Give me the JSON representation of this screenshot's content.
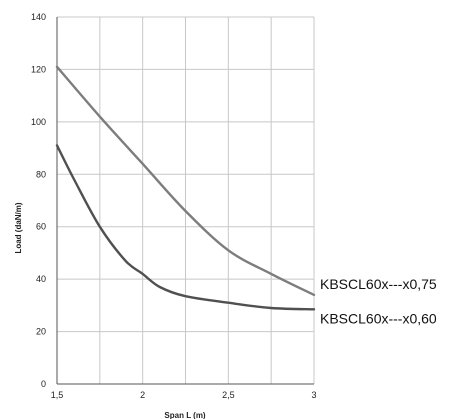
{
  "chart_data": {
    "type": "line",
    "title": "",
    "xlabel": "Span L (m)",
    "ylabel": "Load (daN/m)",
    "xlim": [
      1.5,
      3
    ],
    "ylim": [
      0,
      140
    ],
    "x_ticks": [
      1.5,
      1.75,
      2,
      2.25,
      2.5,
      2.75,
      3
    ],
    "x_tick_labels": [
      "1,5",
      "",
      "2",
      "",
      "2,5",
      "",
      "3"
    ],
    "y_ticks": [
      0,
      20,
      40,
      60,
      80,
      100,
      120,
      140
    ],
    "y_tick_labels": [
      "0",
      "20",
      "40",
      "60",
      "80",
      "100",
      "120",
      "140"
    ],
    "grid": true,
    "legend": "inline-right",
    "series": [
      {
        "name": "KBSCL60x---x0,75",
        "color": "#7d7d7d",
        "x": [
          1.5,
          1.75,
          2.0,
          2.25,
          2.5,
          2.75,
          3.0
        ],
        "y": [
          121,
          102,
          84,
          66,
          51,
          42,
          34
        ]
      },
      {
        "name": "KBSCL60x---x0,60",
        "color": "#505050",
        "x": [
          1.5,
          1.6,
          1.75,
          1.9,
          2.0,
          2.1,
          2.25,
          2.5,
          2.75,
          3.0
        ],
        "y": [
          91,
          78,
          60,
          47,
          42,
          37,
          33.5,
          31,
          29,
          28.5
        ]
      }
    ]
  }
}
